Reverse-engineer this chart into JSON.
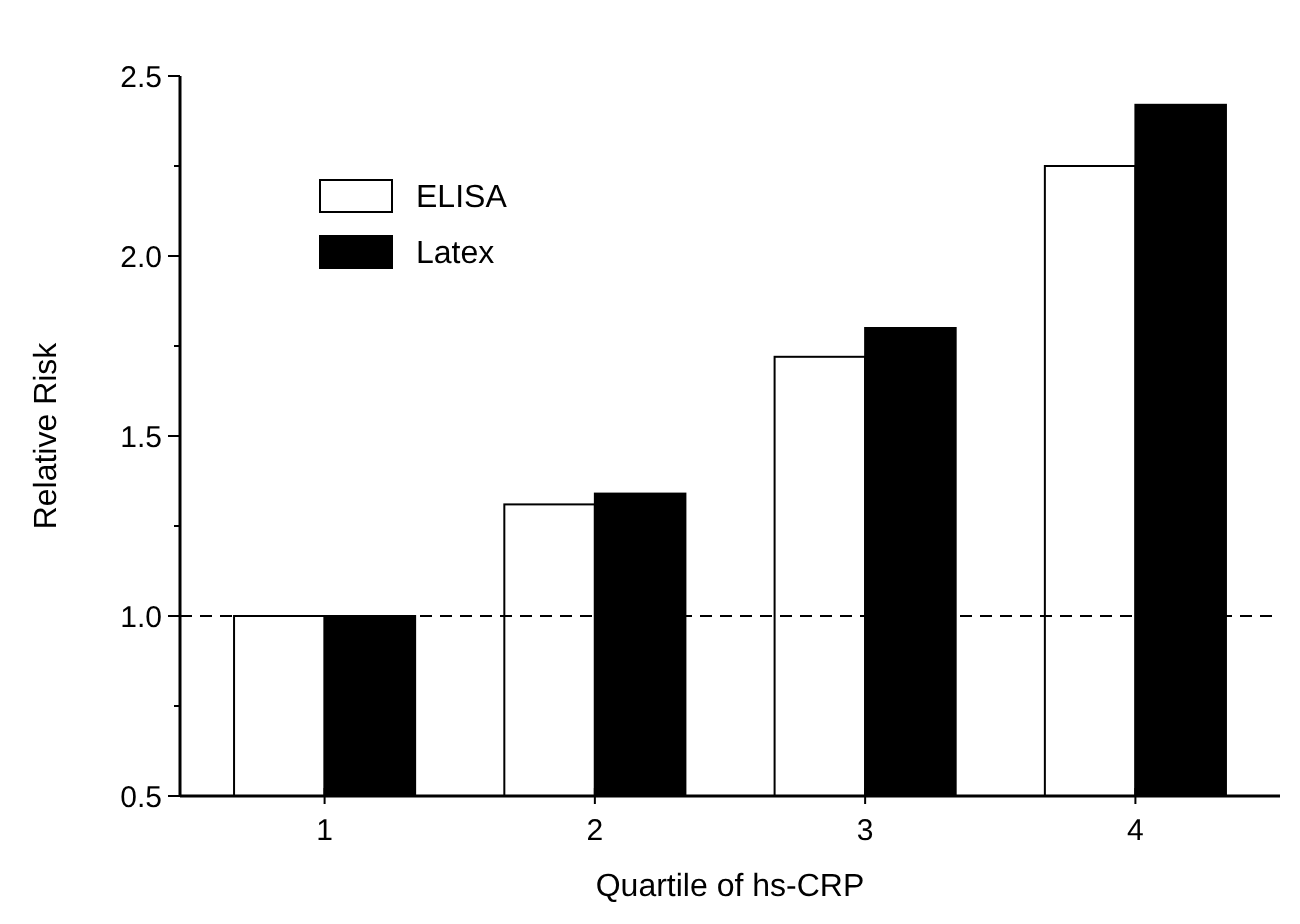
{
  "chart_data": {
    "type": "bar",
    "xlabel": "Quartile of hs-CRP",
    "ylabel": "Relative Risk",
    "categories": [
      "1",
      "2",
      "3",
      "4"
    ],
    "series": [
      {
        "name": "ELISA",
        "color": "#ffffff",
        "values": [
          1.0,
          1.31,
          1.72,
          2.25
        ]
      },
      {
        "name": "Latex",
        "color": "#000000",
        "values": [
          1.0,
          1.34,
          1.8,
          2.42
        ]
      }
    ],
    "ylim": [
      0.5,
      2.5
    ],
    "yticks": [
      {
        "value": 0.5,
        "label": "0.5"
      },
      {
        "value": 1.0,
        "label": "1.0"
      },
      {
        "value": 1.5,
        "label": "1.5"
      },
      {
        "value": 2.0,
        "label": "2.0"
      },
      {
        "value": 2.5,
        "label": "2.5"
      }
    ],
    "ref_lines": [
      {
        "axis": "y",
        "value": 1.0,
        "line_style": "dashed"
      }
    ],
    "legend": "top left",
    "grid": false
  }
}
